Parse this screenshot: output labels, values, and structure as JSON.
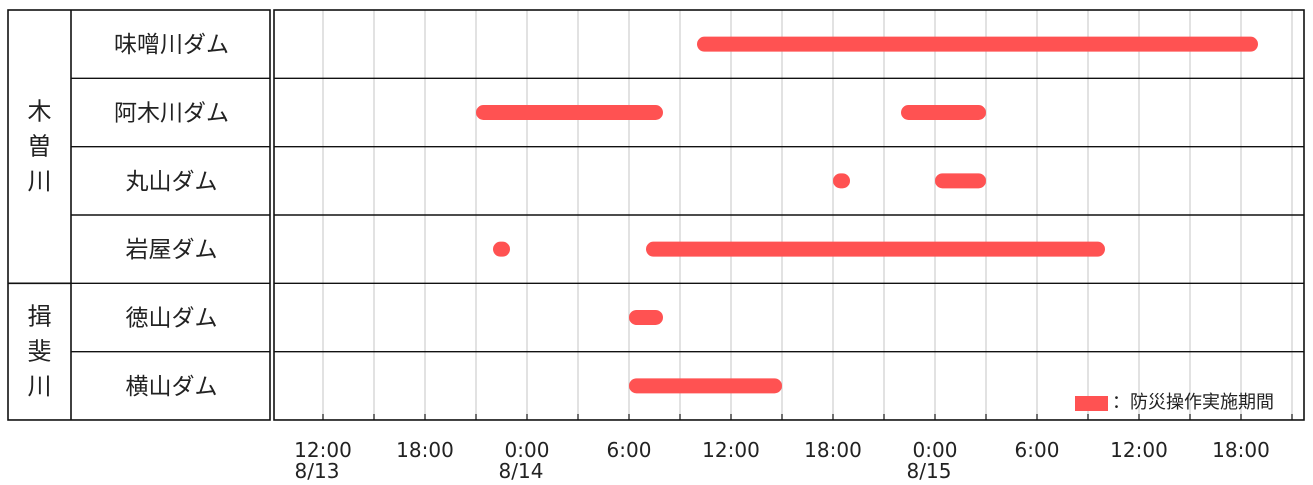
{
  "chart_data": {
    "type": "gantt",
    "title": "",
    "legend": {
      "label": "：防災操作実施期間",
      "color": "#ff5252",
      "placement": "bottom-right"
    },
    "groups": [
      {
        "label": "木曽川",
        "rows": [
          "味噌川ダム",
          "阿木川ダム",
          "丸山ダム",
          "岩屋ダム"
        ]
      },
      {
        "label": "揖斐川",
        "rows": [
          "徳山ダム",
          "横山ダム"
        ]
      }
    ],
    "x_axis": {
      "range_hours": [
        0,
        60
      ],
      "tick_labels": [
        "12:00",
        "18:00",
        "0:00",
        "6:00",
        "12:00",
        "18:00",
        "0:00",
        "6:00",
        "12:00",
        "18:00"
      ],
      "date_labels": [
        {
          "label": "8/13",
          "at_tick": 0
        },
        {
          "label": "8/14",
          "at_tick": 2
        },
        {
          "label": "8/15",
          "at_tick": 6
        }
      ],
      "grid": true
    },
    "series": [
      {
        "row": "味噌川ダム",
        "periods": [
          [
            "8/14 10:00",
            "8/15 19:00"
          ]
        ]
      },
      {
        "row": "阿木川ダム",
        "periods": [
          [
            "8/13 21:00",
            "8/14 08:00"
          ],
          [
            "8/14 22:00",
            "8/15 03:00"
          ]
        ]
      },
      {
        "row": "丸山ダム",
        "periods": [
          [
            "8/14 18:00",
            "8/14 19:00"
          ],
          [
            "8/15 00:00",
            "8/15 03:00"
          ]
        ]
      },
      {
        "row": "岩屋ダム",
        "periods": [
          [
            "8/13 22:00",
            "8/13 23:00"
          ],
          [
            "8/14 07:00",
            "8/15 10:00"
          ]
        ]
      },
      {
        "row": "徳山ダム",
        "periods": [
          [
            "8/14 06:00",
            "8/14 08:00"
          ]
        ]
      },
      {
        "row": "横山ダム",
        "periods": [
          [
            "8/14 06:00",
            "8/14 15:00"
          ]
        ]
      }
    ],
    "bar_color": "#ff5252"
  }
}
